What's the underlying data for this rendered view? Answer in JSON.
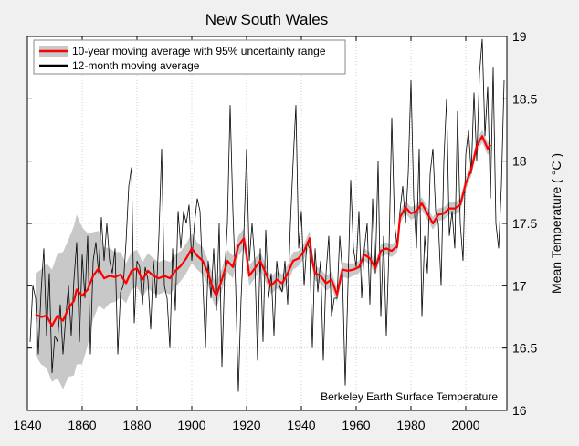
{
  "chart_data": {
    "type": "line",
    "title": "New South Wales",
    "xlabel": "",
    "ylabel": "Mean Temperature ( °C )",
    "annotation": "Berkeley Earth Surface Temperature",
    "xlim": [
      1840,
      2015
    ],
    "ylim": [
      16,
      19
    ],
    "xticks": [
      "1840",
      "1860",
      "1880",
      "1900",
      "1920",
      "1940",
      "1960",
      "1980",
      "2000"
    ],
    "yticks": [
      "16",
      "16.5",
      "17",
      "17.5",
      "18",
      "18.5",
      "19"
    ],
    "yaxis_side": "right",
    "grid": true,
    "legend_position": "top-left",
    "colors": {
      "ten_year": "#ff0000",
      "band": "#c8c8c8",
      "twelve_month": "#000000",
      "background": "#f0f0f0"
    },
    "series": [
      {
        "name": "10-year moving average with 95% uncertainty range",
        "x": [
          1843,
          1845,
          1847,
          1849,
          1851,
          1853,
          1855,
          1857,
          1858,
          1860,
          1862,
          1864,
          1866,
          1868,
          1870,
          1872,
          1874,
          1876,
          1878,
          1880,
          1882,
          1884,
          1886,
          1888,
          1890,
          1892,
          1894,
          1896,
          1898,
          1900,
          1902,
          1904,
          1906,
          1908,
          1909,
          1911,
          1913,
          1915,
          1917,
          1919,
          1920,
          1921,
          1923,
          1925,
          1927,
          1929,
          1931,
          1933,
          1935,
          1937,
          1939,
          1941,
          1943,
          1944,
          1945,
          1947,
          1949,
          1951,
          1953,
          1955,
          1957,
          1959,
          1961,
          1963,
          1965,
          1967,
          1969,
          1971,
          1973,
          1975,
          1976,
          1978,
          1980,
          1982,
          1984,
          1986,
          1988,
          1990,
          1992,
          1994,
          1996,
          1998,
          2000,
          2002,
          2004,
          2006,
          2008,
          2009
        ],
        "y": [
          16.77,
          16.75,
          16.76,
          16.68,
          16.76,
          16.72,
          16.82,
          16.88,
          16.97,
          16.92,
          16.97,
          17.08,
          17.14,
          17.06,
          17.08,
          17.07,
          17.09,
          17.02,
          17.12,
          17.14,
          17.05,
          17.12,
          17.08,
          17.06,
          17.08,
          17.06,
          17.12,
          17.16,
          17.22,
          17.3,
          17.24,
          17.2,
          17.1,
          16.96,
          16.92,
          17.05,
          17.2,
          17.15,
          17.32,
          17.38,
          17.25,
          17.08,
          17.14,
          17.2,
          17.1,
          17.0,
          17.05,
          17.02,
          17.1,
          17.2,
          17.22,
          17.28,
          17.38,
          17.2,
          17.1,
          17.08,
          17.02,
          17.05,
          16.93,
          17.13,
          17.12,
          17.13,
          17.15,
          17.25,
          17.22,
          17.14,
          17.28,
          17.3,
          17.28,
          17.32,
          17.55,
          17.63,
          17.58,
          17.6,
          17.66,
          17.58,
          17.5,
          17.57,
          17.58,
          17.62,
          17.62,
          17.65,
          17.82,
          17.93,
          18.12,
          18.2,
          18.1,
          18.13
        ],
        "uncertainty": [
          0.33,
          0.38,
          0.42,
          0.45,
          0.5,
          0.55,
          0.55,
          0.6,
          0.6,
          0.55,
          0.45,
          0.35,
          0.3,
          0.25,
          0.22,
          0.2,
          0.18,
          0.16,
          0.15,
          0.15,
          0.14,
          0.14,
          0.14,
          0.13,
          0.13,
          0.13,
          0.13,
          0.12,
          0.12,
          0.12,
          0.11,
          0.11,
          0.1,
          0.1,
          0.1,
          0.09,
          0.09,
          0.09,
          0.08,
          0.08,
          0.08,
          0.08,
          0.08,
          0.07,
          0.07,
          0.07,
          0.07,
          0.07,
          0.07,
          0.07,
          0.06,
          0.06,
          0.06,
          0.06,
          0.06,
          0.06,
          0.06,
          0.06,
          0.06,
          0.06,
          0.06,
          0.05,
          0.05,
          0.05,
          0.05,
          0.05,
          0.05,
          0.05,
          0.05,
          0.05,
          0.05,
          0.05,
          0.05,
          0.05,
          0.05,
          0.05,
          0.05,
          0.05,
          0.05,
          0.05,
          0.05,
          0.05,
          0.05,
          0.05,
          0.05,
          0.05,
          0.05,
          0.05
        ]
      },
      {
        "name": "12-month moving average",
        "x": [
          1841,
          1842,
          1843,
          1844,
          1845,
          1846,
          1847,
          1848,
          1849,
          1850,
          1851,
          1852,
          1853,
          1854,
          1855,
          1856,
          1857,
          1858,
          1859,
          1860,
          1861,
          1862,
          1863,
          1864,
          1865,
          1866,
          1867,
          1868,
          1869,
          1870,
          1871,
          1872,
          1873,
          1874,
          1875,
          1876,
          1877,
          1878,
          1879,
          1880,
          1881,
          1882,
          1883,
          1884,
          1885,
          1886,
          1887,
          1888,
          1889,
          1890,
          1891,
          1892,
          1893,
          1894,
          1895,
          1896,
          1897,
          1898,
          1899,
          1900,
          1901,
          1902,
          1903,
          1904,
          1905,
          1906,
          1907,
          1908,
          1909,
          1910,
          1911,
          1912,
          1913,
          1914,
          1915,
          1916,
          1917,
          1918,
          1919,
          1920,
          1921,
          1922,
          1923,
          1924,
          1925,
          1926,
          1927,
          1928,
          1929,
          1930,
          1931,
          1932,
          1933,
          1934,
          1935,
          1936,
          1937,
          1938,
          1939,
          1940,
          1941,
          1942,
          1943,
          1944,
          1945,
          1946,
          1947,
          1948,
          1949,
          1950,
          1951,
          1952,
          1953,
          1954,
          1955,
          1956,
          1957,
          1958,
          1959,
          1960,
          1961,
          1962,
          1963,
          1964,
          1965,
          1966,
          1967,
          1968,
          1969,
          1970,
          1971,
          1972,
          1973,
          1974,
          1975,
          1976,
          1977,
          1978,
          1979,
          1980,
          1981,
          1982,
          1983,
          1984,
          1985,
          1986,
          1987,
          1988,
          1989,
          1990,
          1991,
          1992,
          1993,
          1994,
          1995,
          1996,
          1997,
          1998,
          1999,
          2000,
          2001,
          2002,
          2003,
          2004,
          2005,
          2006,
          2007,
          2008,
          2009,
          2010,
          2011,
          2012,
          2013,
          2014
        ],
        "y": [
          16.55,
          17.0,
          16.9,
          16.45,
          16.95,
          17.3,
          16.6,
          17.1,
          16.3,
          16.6,
          16.55,
          16.85,
          16.45,
          16.75,
          17.0,
          16.6,
          17.05,
          17.35,
          16.55,
          17.25,
          16.9,
          17.4,
          16.45,
          17.2,
          17.35,
          17.1,
          17.55,
          17.2,
          17.5,
          17.2,
          17.1,
          17.3,
          16.45,
          16.95,
          17.0,
          17.35,
          17.8,
          17.95,
          16.7,
          17.2,
          17.15,
          16.85,
          17.15,
          17.05,
          16.65,
          17.2,
          16.9,
          17.4,
          18.1,
          17.0,
          16.9,
          16.5,
          17.3,
          16.8,
          17.6,
          17.3,
          17.6,
          17.5,
          17.65,
          17.2,
          17.5,
          17.7,
          17.6,
          17.05,
          16.5,
          17.2,
          16.9,
          17.3,
          16.8,
          17.5,
          16.35,
          17.1,
          17.5,
          18.45,
          17.6,
          17.0,
          16.15,
          16.9,
          17.4,
          18.1,
          17.2,
          17.5,
          17.2,
          16.4,
          17.3,
          16.55,
          17.45,
          16.9,
          17.1,
          16.6,
          17.2,
          17.0,
          16.95,
          17.2,
          16.85,
          17.5,
          18.0,
          18.45,
          17.3,
          17.6,
          17.0,
          17.35,
          17.3,
          16.5,
          17.3,
          16.95,
          17.2,
          16.4,
          17.1,
          17.4,
          16.75,
          16.9,
          16.9,
          17.4,
          17.1,
          16.2,
          17.0,
          17.85,
          17.3,
          17.15,
          17.6,
          16.9,
          17.3,
          17.5,
          16.85,
          17.7,
          17.1,
          18.0,
          16.75,
          17.4,
          16.6,
          17.3,
          18.35,
          17.5,
          17.3,
          17.6,
          17.8,
          17.5,
          17.9,
          18.65,
          17.7,
          17.3,
          18.1,
          16.75,
          17.4,
          17.1,
          17.9,
          18.1,
          17.6,
          17.5,
          17.0,
          18.0,
          18.5,
          17.4,
          17.6,
          17.3,
          18.4,
          17.5,
          17.2,
          18.05,
          18.25,
          17.9,
          18.55,
          18.0,
          18.7,
          18.98,
          18.2,
          18.6,
          17.7,
          18.75,
          17.5,
          17.3,
          17.8,
          18.65
        ]
      }
    ]
  }
}
